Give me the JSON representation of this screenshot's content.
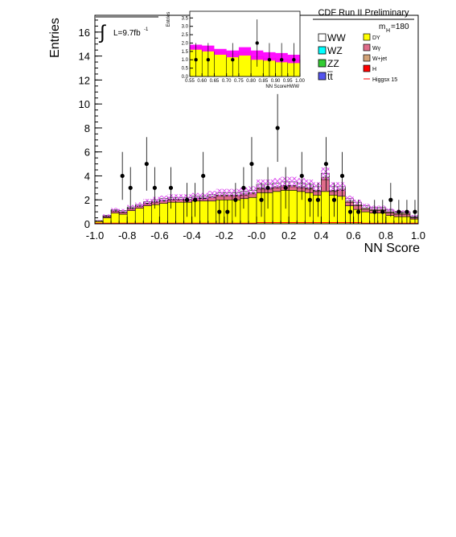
{
  "chart_data": [
    {
      "type": "bar",
      "title": "CDF Run II Preliminary",
      "xlabel": "NN Score",
      "ylabel": "Entries",
      "xlim": [
        -1.0,
        1.0
      ],
      "ylim": [
        0,
        17.4
      ],
      "xticks": [
        "-1.0",
        "-0.8",
        "-0.6",
        "-0.4",
        "-0.2",
        "-0.0",
        "0.2",
        "0.4",
        "0.6",
        "0.8",
        "1.0"
      ],
      "yticks": [
        "0",
        "2",
        "4",
        "6",
        "8",
        "10",
        "12",
        "14",
        "16"
      ],
      "luminosity_label": "L=9.7fb",
      "luminosity_exponent": "-1",
      "mass_label": "m",
      "mass_subscript": "H",
      "mass_value": "=180",
      "bin_edges": [
        -1.0,
        -0.95,
        -0.9,
        -0.85,
        -0.8,
        -0.75,
        -0.7,
        -0.65,
        -0.6,
        -0.55,
        -0.5,
        -0.45,
        -0.4,
        -0.35,
        -0.3,
        -0.25,
        -0.2,
        -0.15,
        -0.1,
        -0.05,
        0.0,
        0.05,
        0.1,
        0.15,
        0.2,
        0.25,
        0.3,
        0.35,
        0.4,
        0.45,
        0.5,
        0.55,
        0.6,
        0.65,
        0.7,
        0.75,
        0.8,
        0.85,
        0.9,
        0.95,
        1.0
      ],
      "series": [
        {
          "name": "DY",
          "color": "#ffff00",
          "values": [
            0.2,
            0.5,
            0.9,
            0.8,
            1.1,
            1.3,
            1.5,
            1.6,
            1.7,
            1.8,
            1.8,
            1.8,
            1.9,
            1.9,
            1.9,
            2.0,
            2.0,
            2.0,
            2.1,
            2.2,
            2.6,
            2.6,
            2.7,
            2.8,
            2.8,
            2.7,
            2.6,
            2.4,
            2.7,
            2.4,
            2.3,
            1.5,
            1.2,
            1.0,
            0.9,
            0.9,
            0.7,
            0.6,
            0.6,
            0.4
          ]
        },
        {
          "name": "Wγ",
          "color": "#e06c8a",
          "values": [
            0.02,
            0.1,
            0.15,
            0.15,
            0.15,
            0.15,
            0.18,
            0.2,
            0.2,
            0.2,
            0.2,
            0.2,
            0.2,
            0.2,
            0.3,
            0.3,
            0.3,
            0.3,
            0.3,
            0.3,
            0.3,
            0.3,
            0.3,
            0.3,
            0.3,
            0.3,
            0.3,
            0.3,
            1.0,
            0.3,
            0.5,
            0.3,
            0.3,
            0.2,
            0.2,
            0.2,
            0.2,
            0.2,
            0.2,
            0.1
          ]
        },
        {
          "name": "W+jet",
          "color": "#d2a277",
          "values": [
            0.02,
            0.05,
            0.05,
            0.05,
            0.05,
            0.05,
            0.05,
            0.05,
            0.05,
            0.05,
            0.05,
            0.05,
            0.05,
            0.05,
            0.1,
            0.1,
            0.1,
            0.1,
            0.1,
            0.1,
            0.1,
            0.1,
            0.1,
            0.1,
            0.1,
            0.1,
            0.1,
            0.1,
            0.2,
            0.1,
            0.1,
            0.1,
            0.1,
            0.1,
            0.1,
            0.1,
            0.1,
            0.1,
            0.1,
            0.05
          ]
        },
        {
          "name": "WW",
          "color": "#ffffff",
          "values": [
            0.02,
            0.05,
            0.08,
            0.1,
            0.1,
            0.1,
            0.12,
            0.15,
            0.15,
            0.15,
            0.15,
            0.15,
            0.15,
            0.15,
            0.15,
            0.2,
            0.2,
            0.2,
            0.2,
            0.2,
            0.3,
            0.3,
            0.3,
            0.3,
            0.3,
            0.3,
            0.3,
            0.3,
            0.3,
            0.3,
            0.2,
            0.2,
            0.2,
            0.2,
            0.15,
            0.15,
            0.15,
            0.15,
            0.1,
            0.1
          ]
        }
      ],
      "uncertainty_band": {
        "color": "#dd55ee",
        "fraction": 0.12
      },
      "higgs_signal": {
        "name": "Higgsx 15",
        "color": "#ff0000",
        "values": [
          0.05,
          0.05,
          0.05,
          0.05,
          0.05,
          0.05,
          0.05,
          0.05,
          0.05,
          0.05,
          0.05,
          0.05,
          0.05,
          0.05,
          0.05,
          0.05,
          0.05,
          0.05,
          0.05,
          0.05,
          0.1,
          0.1,
          0.1,
          0.1,
          0.1,
          0.1,
          0.1,
          0.1,
          0.1,
          0.1,
          0.1,
          0.1,
          0.1,
          0.05,
          0.05,
          0.05,
          0.05,
          0.05,
          0.05,
          0.05
        ]
      },
      "data_points": {
        "x": [
          -0.83,
          -0.78,
          -0.68,
          -0.63,
          -0.53,
          -0.43,
          -0.38,
          -0.33,
          -0.23,
          -0.18,
          -0.13,
          -0.08,
          -0.03,
          0.03,
          0.07,
          0.13,
          0.18,
          0.28,
          0.33,
          0.38,
          0.43,
          0.48,
          0.53,
          0.58,
          0.63,
          0.73,
          0.78,
          0.83,
          0.88,
          0.93,
          0.98
        ],
        "y": [
          4,
          3,
          5,
          3,
          3,
          2,
          2,
          4,
          1,
          1,
          2,
          3,
          5,
          2,
          3,
          8,
          3,
          4,
          2,
          2,
          5,
          2,
          4,
          1,
          1,
          1,
          1,
          2,
          1,
          1,
          1
        ]
      },
      "legend": [
        {
          "label": "WW",
          "color": "#ffffff",
          "size": "large"
        },
        {
          "label": "WZ",
          "color": "#00ffff",
          "size": "large"
        },
        {
          "label": "ZZ",
          "color": "#33cc33",
          "size": "large"
        },
        {
          "label": "tt",
          "color": "#5555ee",
          "size": "large",
          "overline": true
        },
        {
          "label": "DY",
          "color": "#ffff00",
          "size": "small"
        },
        {
          "label": "Wγ",
          "color": "#e06c8a",
          "size": "small"
        },
        {
          "label": "W+jet",
          "color": "#d2a277",
          "size": "small"
        },
        {
          "label": "H",
          "color": "#ff0000",
          "size": "small"
        },
        {
          "label": "Higgsx 15",
          "color": "#ff0000",
          "size": "small",
          "line": true
        }
      ]
    },
    {
      "type": "bar",
      "title": "",
      "xlabel": "NN ScoreHWW",
      "ylabel": "Entries",
      "xlim": [
        0.55,
        1.0
      ],
      "ylim": [
        0,
        3.9
      ],
      "xticks": [
        "0.55",
        "0.60",
        "0.65",
        "0.70",
        "0.75",
        "0.80",
        "0.85",
        "0.90",
        "0.95",
        "1.00"
      ],
      "yticks": [
        "0.0",
        "0.5",
        "1.0",
        "1.5",
        "2.0",
        "2.5",
        "3.0",
        "3.5"
      ],
      "bin_edges": [
        0.55,
        0.6,
        0.65,
        0.7,
        0.75,
        0.8,
        0.85,
        0.9,
        0.95,
        1.0
      ],
      "stack": [
        1.75,
        1.55,
        1.45,
        1.35,
        1.45,
        1.2,
        1.1,
        1.05,
        1.0
      ],
      "fill_color": "#ffff00",
      "band_low": [
        1.6,
        1.5,
        1.3,
        1.15,
        1.25,
        1.0,
        0.95,
        0.85,
        0.8
      ],
      "band_high": [
        1.9,
        1.85,
        1.65,
        1.55,
        1.75,
        1.55,
        1.45,
        1.4,
        1.3
      ],
      "band_color": "#ff00ff",
      "data_points": {
        "x": [
          0.575,
          0.625,
          0.725,
          0.825,
          0.875,
          0.925,
          0.975
        ],
        "y": [
          1,
          1,
          1,
          2,
          1,
          1,
          1
        ]
      }
    }
  ]
}
